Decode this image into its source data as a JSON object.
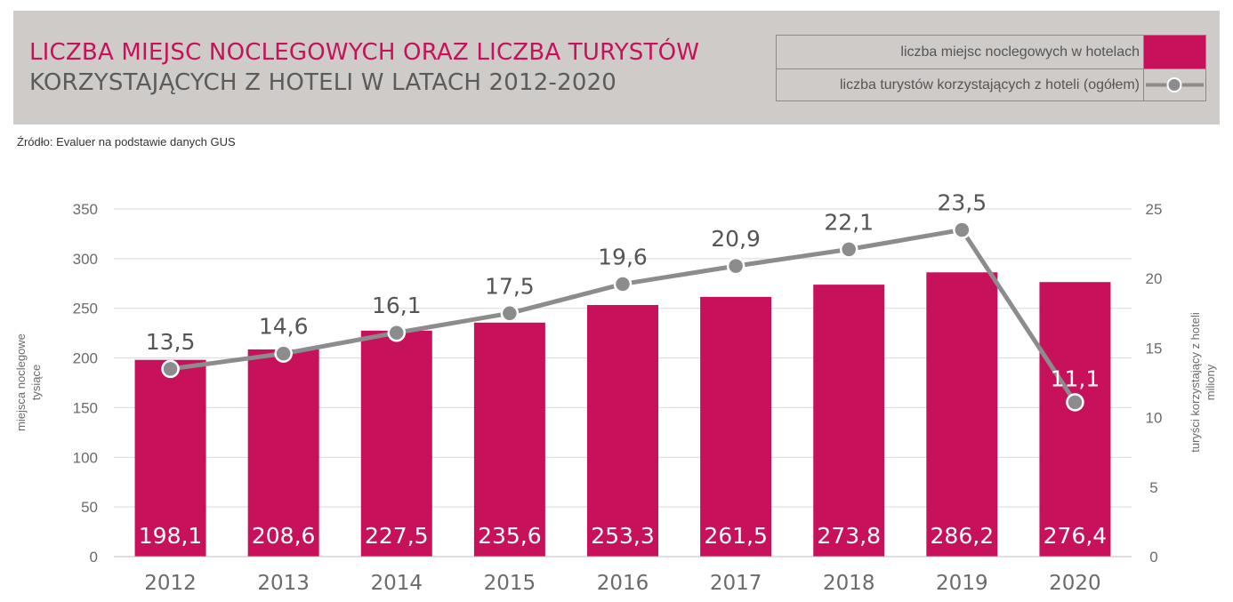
{
  "header": {
    "title_line1": "LICZBA MIEJSC NOCLEGOWYCH ORAZ LICZBA TURYSTÓW",
    "title_line2": "KORZYSTAJĄCYCH Z HOTELI W LATACH 2012-2020",
    "background_color": "#cfcbc9",
    "title_accent_color": "#c7115a"
  },
  "legend": {
    "items": [
      {
        "label": "liczba miejsc noclegowych w hotelach",
        "type": "bar",
        "color": "#c7115a"
      },
      {
        "label": "liczba turystów korzystających z hoteli (ogółem)",
        "type": "line-marker",
        "color": "#8c8c8c"
      }
    ]
  },
  "source": "Źródło: Evaluer na podstawie danych GUS",
  "chart_data": {
    "type": "bar",
    "categories": [
      "2012",
      "2013",
      "2014",
      "2015",
      "2016",
      "2017",
      "2018",
      "2019",
      "2020"
    ],
    "series": [
      {
        "name": "liczba miejsc noclegowych w hotelach",
        "type": "bar",
        "axis": "left",
        "color": "#c7115a",
        "values": [
          198.1,
          208.6,
          227.5,
          235.6,
          253.3,
          261.5,
          273.8,
          286.2,
          276.4
        ],
        "labels": [
          "198,1",
          "208,6",
          "227,5",
          "235,6",
          "253,3",
          "261,5",
          "273,8",
          "286,2",
          "276,4"
        ]
      },
      {
        "name": "liczba turystów korzystających z hoteli (ogółem)",
        "type": "line",
        "axis": "right",
        "color": "#8c8c8c",
        "values": [
          13.5,
          14.6,
          16.1,
          17.5,
          19.6,
          20.9,
          22.1,
          23.5,
          11.1
        ],
        "labels": [
          "13,5",
          "14,6",
          "16,1",
          "17,5",
          "19,6",
          "20,9",
          "22,1",
          "23,5",
          "11,1"
        ]
      }
    ],
    "y_left": {
      "label_line1": "miejsca noclegowe",
      "label_line2": "tysiące",
      "ylim": [
        0,
        350
      ],
      "ticks": [
        "0",
        "50",
        "100",
        "150",
        "200",
        "250",
        "300",
        "350"
      ]
    },
    "y_right": {
      "label_line1": "turyści korzystający z hoteli",
      "label_line2": "miliony",
      "ylim": [
        0,
        25
      ],
      "ticks": [
        "0",
        "5",
        "10",
        "15",
        "20",
        "25"
      ]
    },
    "grid": true
  }
}
